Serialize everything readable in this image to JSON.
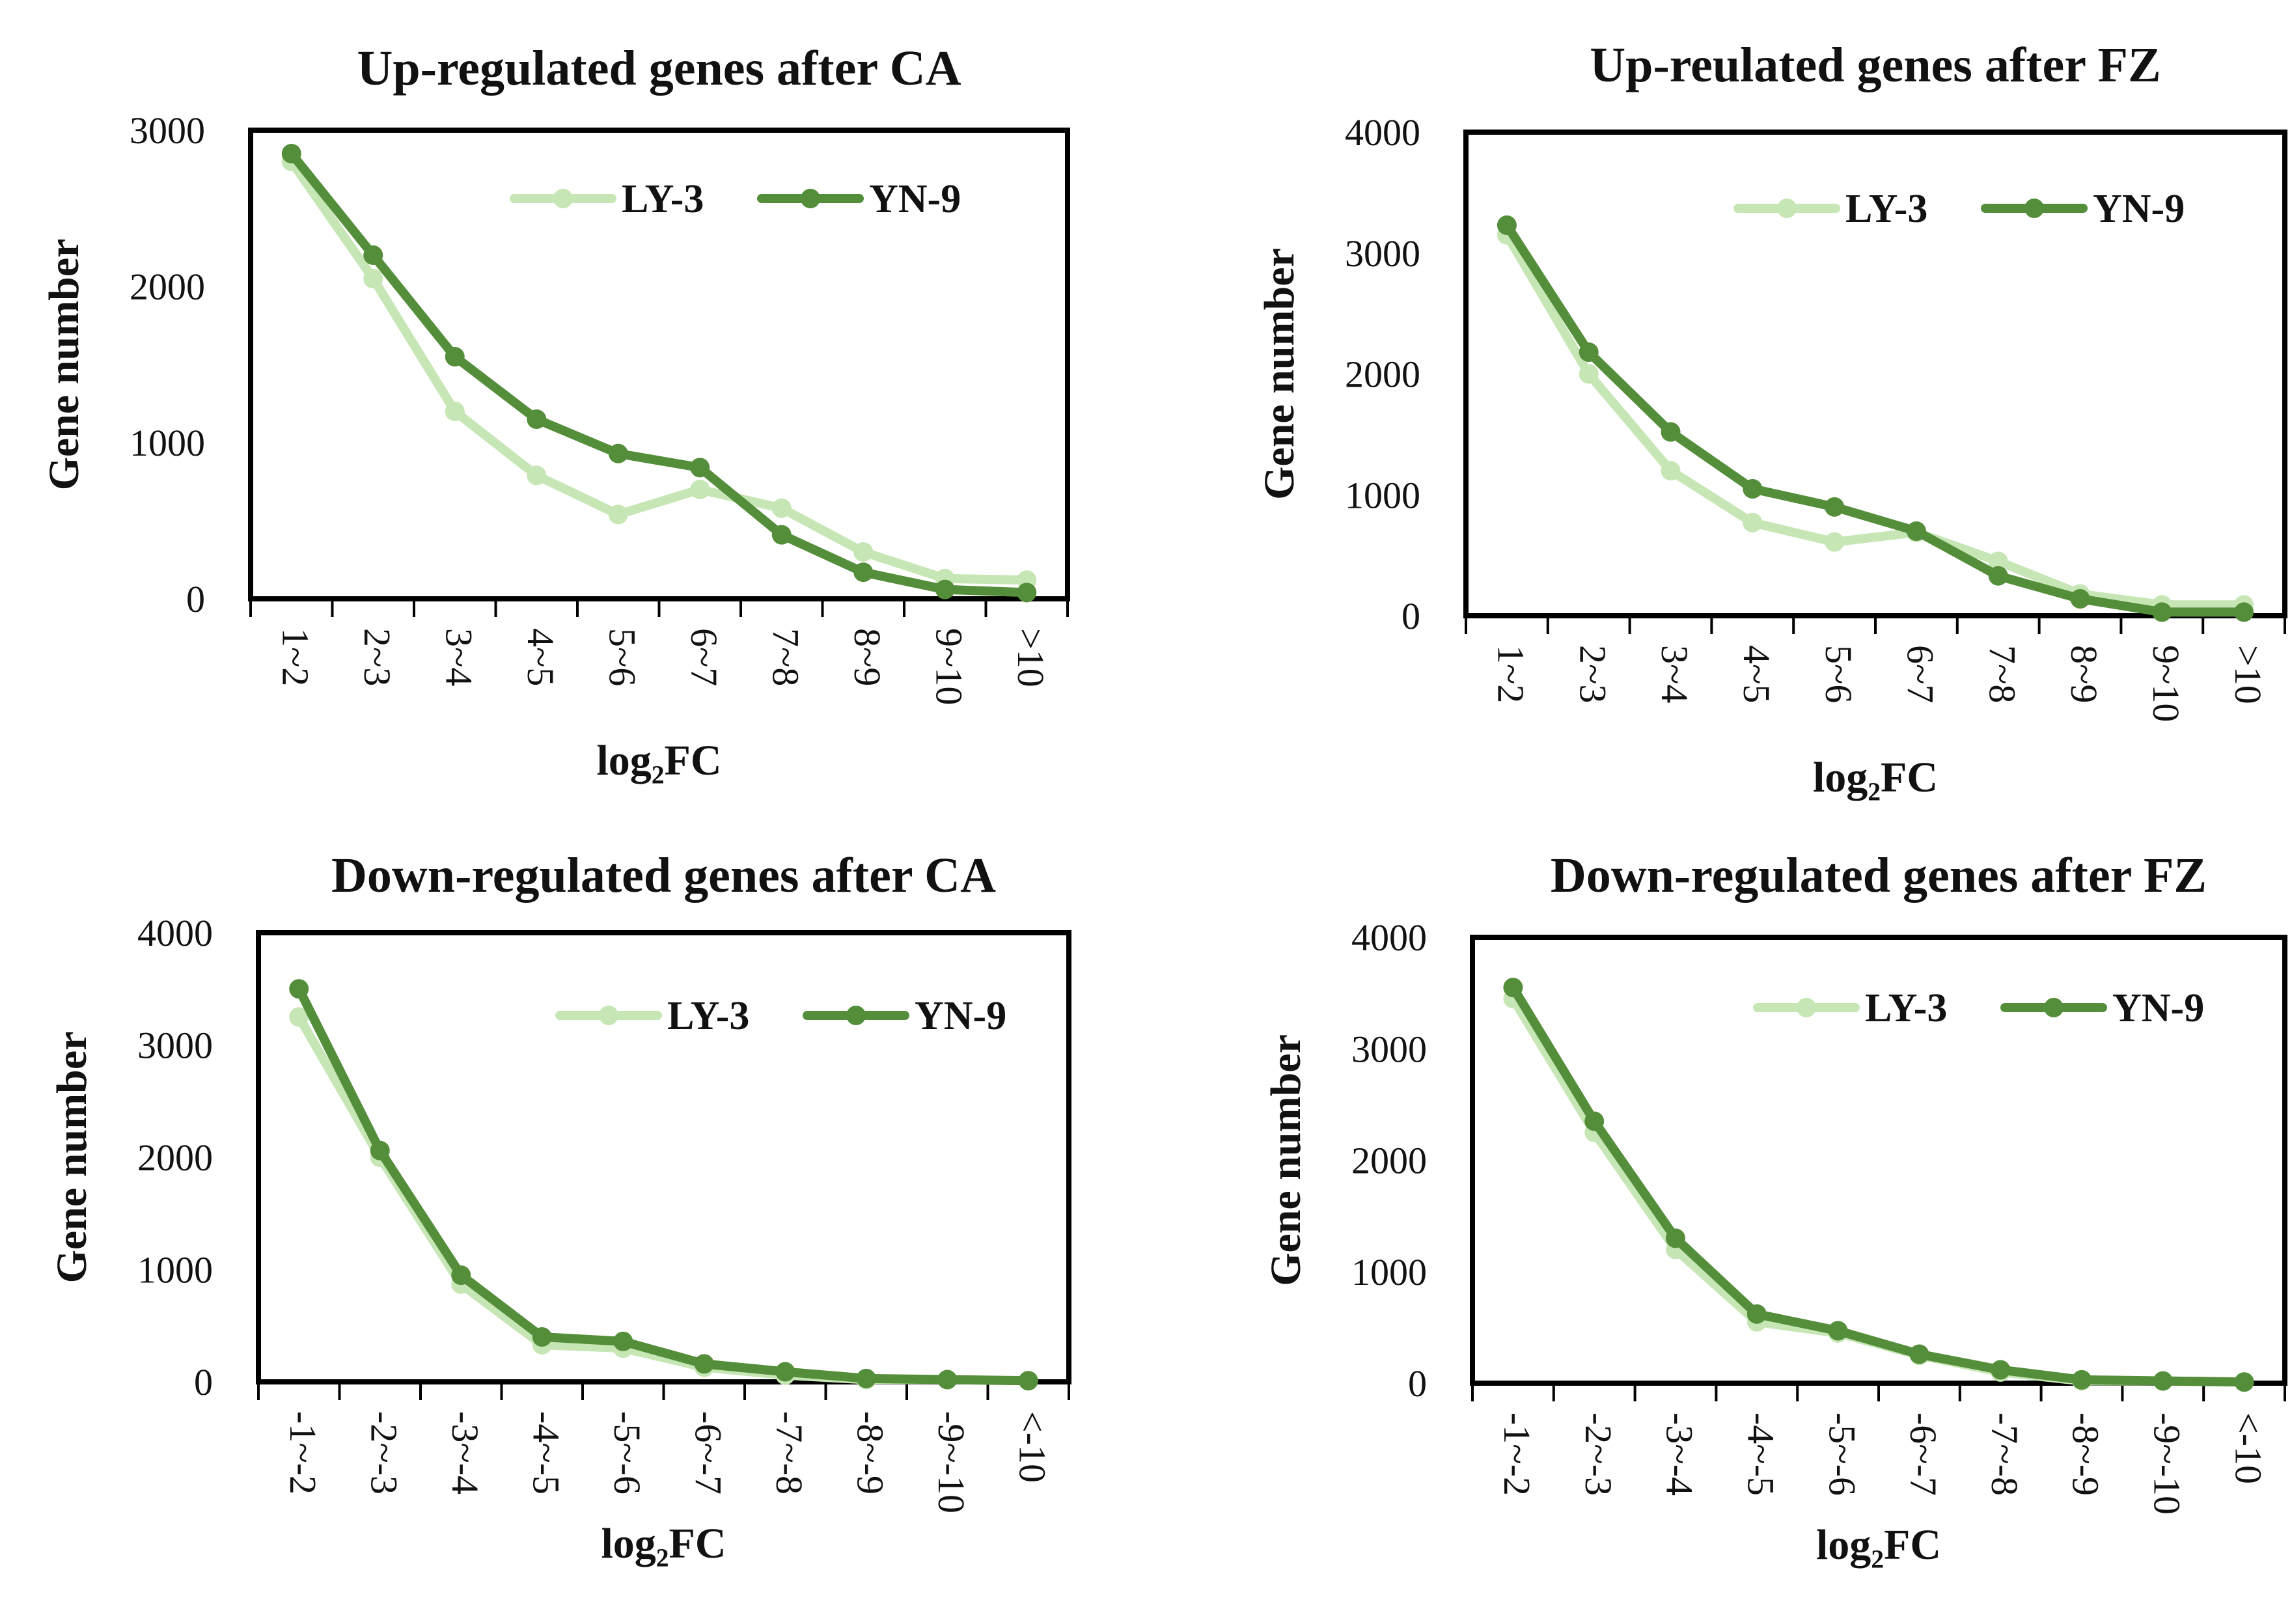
{
  "colors": {
    "LY-3": "#c7e6b5",
    "YN-9": "#548e3a",
    "axis": "#000000"
  },
  "chart_data": [
    {
      "type": "line",
      "title": "Up-regulated genes after CA",
      "xlabel": "log₂FC",
      "ylabel": "Gene number",
      "categories": [
        "1~2",
        "2~3",
        "3~4",
        "4~5",
        "5~6",
        "6~7",
        "7~8",
        "8~9",
        "9~10",
        ">10"
      ],
      "ylim": [
        0,
        3000
      ],
      "yticks": [
        "0",
        "1000",
        "2000",
        "3000"
      ],
      "legend": "top-right",
      "series": [
        {
          "name": "LY-3",
          "values": [
            2800,
            2050,
            1200,
            790,
            540,
            700,
            580,
            300,
            130,
            120
          ]
        },
        {
          "name": "YN-9",
          "values": [
            2850,
            2200,
            1550,
            1150,
            930,
            840,
            410,
            170,
            60,
            40
          ]
        }
      ]
    },
    {
      "type": "line",
      "title": "Up-reulated genes after FZ",
      "xlabel": "log₂FC",
      "ylabel": "Gene number",
      "categories": [
        "1~2",
        "2~3",
        "3~4",
        "4~5",
        "5~6",
        "6~7",
        "7~8",
        "8~9",
        "9~10",
        ">10"
      ],
      "ylim": [
        0,
        4000
      ],
      "yticks": [
        "0",
        "1000",
        "2000",
        "3000",
        "4000"
      ],
      "legend": "top-right",
      "series": [
        {
          "name": "LY-3",
          "values": [
            3150,
            2000,
            1200,
            770,
            610,
            690,
            450,
            180,
            90,
            90
          ]
        },
        {
          "name": "YN-9",
          "values": [
            3230,
            2180,
            1520,
            1050,
            900,
            700,
            330,
            140,
            30,
            30
          ]
        }
      ]
    },
    {
      "type": "line",
      "title": "Down-regulated genes after CA",
      "xlabel": "log₂FC",
      "ylabel": "Gene number",
      "categories": [
        "-1~-2",
        "-2~-3",
        "-3~-4",
        "-4~-5",
        "-5~-6",
        "-6~-7",
        "-7~-8",
        "-8~-9",
        "-9~-10",
        "<-10"
      ],
      "ylim": [
        0,
        4000
      ],
      "yticks": [
        "0",
        "1000",
        "2000",
        "3000",
        "4000"
      ],
      "legend": "top-right",
      "series": [
        {
          "name": "LY-3",
          "values": [
            3250,
            2000,
            870,
            330,
            300,
            130,
            60,
            20,
            20,
            10
          ]
        },
        {
          "name": "YN-9",
          "values": [
            3500,
            2060,
            950,
            400,
            360,
            160,
            90,
            30,
            20,
            10
          ]
        }
      ]
    },
    {
      "type": "line",
      "title": "Down-regulated genes after FZ",
      "xlabel": "log₂FC",
      "ylabel": "Gene number",
      "categories": [
        "-1~-2",
        "-2~-3",
        "-3~-4",
        "-4~-5",
        "-5~-6",
        "-6~-7",
        "-7~-8",
        "-8~-9",
        "-9~-10",
        "<-10"
      ],
      "ylim": [
        0,
        4000
      ],
      "yticks": [
        "0",
        "1000",
        "2000",
        "3000",
        "4000"
      ],
      "legend": "top-right",
      "series": [
        {
          "name": "LY-3",
          "values": [
            3450,
            2250,
            1200,
            550,
            450,
            250,
            100,
            20,
            20,
            10
          ]
        },
        {
          "name": "YN-9",
          "values": [
            3550,
            2350,
            1300,
            620,
            470,
            260,
            120,
            30,
            20,
            10
          ]
        }
      ]
    }
  ]
}
